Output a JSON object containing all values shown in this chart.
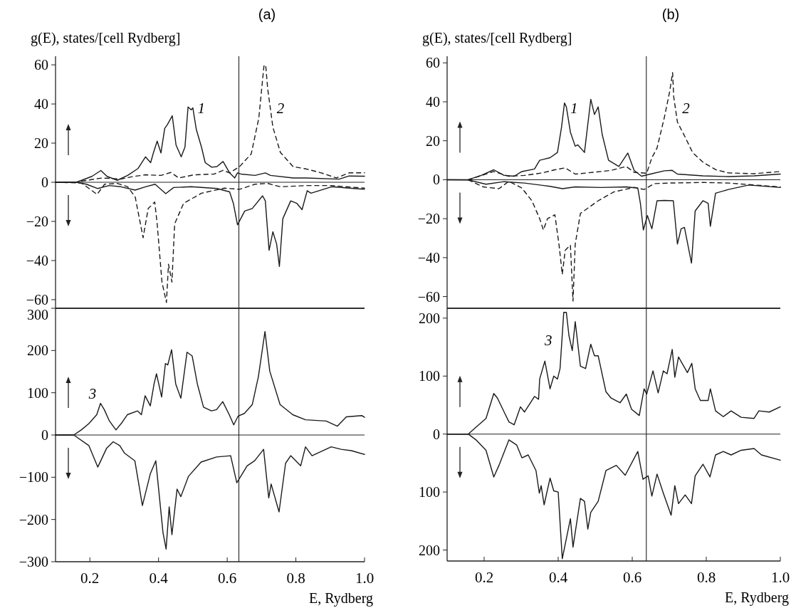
{
  "chart_data": [
    {
      "type": "line",
      "title": "(a)",
      "ylabel": "g(E), states/[cell Rydberg]",
      "xlim": [
        0.1,
        1.0
      ],
      "ylim": [
        -64.4,
        64.4
      ],
      "yticks": [
        60,
        40,
        20,
        0,
        -20,
        -40,
        -60
      ],
      "tick_labels": "y",
      "ref_lines": [
        {
          "axis": "x",
          "value": 0.634
        },
        {
          "axis": "y",
          "value": 0
        }
      ],
      "annotations": [
        "1",
        "2"
      ],
      "series": [
        {
          "color": "#1a1a1a",
          "line_style": "solid",
          "x": [
            0.1,
            0.16,
            0.176,
            0.206,
            0.232,
            0.25,
            0.28,
            0.31,
            0.34,
            0.362,
            0.377,
            0.385,
            0.396,
            0.407,
            0.418,
            0.426,
            0.44,
            0.451,
            0.466,
            0.477,
            0.486,
            0.495,
            0.5,
            0.51,
            0.525,
            0.536,
            0.555,
            0.57,
            0.588,
            0.607,
            0.622,
            0.63,
            0.64,
            0.681,
            0.711,
            0.726,
            0.792,
            0.83,
            0.926,
            0.955,
            1.0
          ],
          "values": [
            0,
            0,
            1,
            3,
            6,
            3,
            1,
            3.5,
            7,
            13,
            10,
            15,
            21,
            15,
            27.5,
            29.5,
            34,
            19,
            13,
            18,
            38.5,
            37,
            38,
            27,
            18,
            10,
            7.7,
            8,
            10.6,
            4.8,
            2.2,
            4.8,
            4.2,
            3.5,
            4.8,
            3.5,
            2.2,
            2.2,
            1.6,
            3.2,
            3.1
          ]
        },
        {
          "color": "#1a1a1a",
          "line_style": "dashed",
          "x": [
            0.176,
            0.236,
            0.29,
            0.325,
            0.362,
            0.407,
            0.436,
            0.459,
            0.503,
            0.562,
            0.588,
            0.607,
            0.636,
            0.67,
            0.692,
            0.707,
            0.712,
            0.718,
            0.733,
            0.755,
            0.792,
            0.83,
            0.874,
            0.918,
            0.955,
            1.0
          ],
          "values": [
            0.6,
            2.2,
            1.6,
            2.9,
            3.8,
            3.5,
            5,
            2.2,
            3.8,
            4.2,
            6.1,
            4.8,
            8,
            14.5,
            32.7,
            59.4,
            60,
            47.7,
            28.2,
            15.2,
            8,
            6.8,
            4.8,
            2.2,
            4.8,
            4.8
          ]
        },
        {
          "color": "#1a1a1a",
          "line_style": "solid",
          "x": [
            0.1,
            0.16,
            0.19,
            0.223,
            0.256,
            0.29,
            0.332,
            0.362,
            0.39,
            0.421,
            0.444,
            0.495,
            0.57,
            0.607,
            0.618,
            0.63,
            0.651,
            0.673,
            0.703,
            0.711,
            0.722,
            0.733,
            0.744,
            0.752,
            0.762,
            0.785,
            0.803,
            0.818,
            0.833,
            0.844,
            0.904,
            1.0
          ],
          "values": [
            0,
            0,
            -1,
            -3.2,
            -1.7,
            -2.3,
            -4,
            -2.3,
            -1,
            -5.8,
            -2.7,
            -2.3,
            -3.2,
            -4.9,
            -10.8,
            -21.8,
            -14.7,
            -13.4,
            -6.9,
            -9.5,
            -34.8,
            -25.3,
            -31.6,
            -43,
            -18.6,
            -9.5,
            -10.8,
            -14,
            -4.3,
            -5.6,
            -2.3,
            -3.6
          ]
        },
        {
          "color": "#1a1a1a",
          "line_style": "dashed",
          "x": [
            0.1,
            0.176,
            0.221,
            0.243,
            0.28,
            0.31,
            0.332,
            0.355,
            0.37,
            0.389,
            0.396,
            0.41,
            0.423,
            0.429,
            0.439,
            0.447,
            0.473,
            0.525,
            0.592,
            0.636,
            0.681,
            0.718,
            0.755,
            0.83,
            0.904,
            1.0
          ],
          "values": [
            0,
            -0.4,
            -6.2,
            -1,
            -0.6,
            -2.3,
            -7.5,
            -28.3,
            -13.4,
            -10.1,
            -21.2,
            -51,
            -61.4,
            -41.9,
            -51,
            -21.2,
            -10.8,
            -5.6,
            -3,
            -3.6,
            -1,
            -0.6,
            -2.3,
            -1.7,
            -1.7,
            -3
          ]
        }
      ]
    },
    {
      "type": "line",
      "xlabel": "E, Rydberg",
      "xlim": [
        0.1,
        1.0
      ],
      "ylim": [
        -300,
        300
      ],
      "xticks": [
        0.2,
        0.4,
        0.6,
        0.8,
        {
          "value": 1,
          "label": "1.0"
        }
      ],
      "yticks": [
        300,
        200,
        100,
        0,
        -100,
        -200,
        -300
      ],
      "ref_lines": [
        {
          "axis": "x",
          "value": 0.634
        },
        {
          "axis": "y",
          "value": 0
        }
      ],
      "annotations": [
        "3"
      ],
      "series": [
        {
          "color": "#1a1a1a",
          "line_style": "solid",
          "x": [
            0.1,
            0.153,
            0.175,
            0.197,
            0.22,
            0.231,
            0.242,
            0.257,
            0.276,
            0.294,
            0.309,
            0.339,
            0.35,
            0.361,
            0.376,
            0.387,
            0.394,
            0.409,
            0.42,
            0.427,
            0.438,
            0.45,
            0.465,
            0.483,
            0.498,
            0.513,
            0.531,
            0.554,
            0.569,
            0.587,
            0.606,
            0.619,
            0.632,
            0.65,
            0.673,
            0.691,
            0.71,
            0.724,
            0.754,
            0.791,
            0.828,
            0.888,
            0.921,
            0.947,
            0.992,
            1.0
          ],
          "values": [
            0,
            0,
            12,
            27,
            48,
            75,
            60,
            33,
            12,
            30,
            48,
            57,
            48,
            93,
            69,
            121,
            145,
            90,
            169,
            166,
            202,
            121,
            87,
            196,
            187,
            121,
            66,
            57,
            60,
            79,
            48,
            24,
            45,
            51,
            72,
            139,
            245,
            151,
            72,
            48,
            36,
            33,
            21,
            43,
            46,
            42
          ]
        },
        {
          "color": "#1a1a1a",
          "line_style": "solid",
          "x": [
            0.1,
            0.153,
            0.197,
            0.223,
            0.249,
            0.268,
            0.287,
            0.301,
            0.331,
            0.353,
            0.376,
            0.392,
            0.413,
            0.422,
            0.431,
            0.439,
            0.454,
            0.465,
            0.487,
            0.524,
            0.569,
            0.61,
            0.628,
            0.658,
            0.68,
            0.706,
            0.721,
            0.728,
            0.751,
            0.77,
            0.785,
            0.814,
            0.828,
            0.847,
            0.903,
            0.932,
            0.962,
            1.0
          ],
          "values": [
            0,
            0,
            -25,
            -76,
            -31,
            -16,
            -25,
            -43,
            -61,
            -167,
            -92,
            -61,
            -231,
            -270,
            -170,
            -236,
            -128,
            -146,
            -98,
            -64,
            -52,
            -49,
            -113,
            -73,
            -61,
            -34,
            -149,
            -116,
            -182,
            -67,
            -49,
            -73,
            -28,
            -49,
            -28,
            -34,
            -37,
            -46
          ]
        }
      ]
    },
    {
      "type": "line",
      "title": "(b)",
      "ylabel": "g(E), states/[cell Rydberg]",
      "xlim": [
        0.1,
        1.0
      ],
      "ylim": [
        -66,
        63.4
      ],
      "yticks": [
        60,
        40,
        20,
        0,
        -20,
        -40,
        -60
      ],
      "tick_labels": "y",
      "ref_lines": [
        {
          "axis": "x",
          "value": 0.638
        },
        {
          "axis": "y",
          "value": 0
        }
      ],
      "annotations": [
        "1",
        "2"
      ],
      "series": [
        {
          "color": "#1a1a1a",
          "line_style": "solid",
          "x": [
            0.1,
            0.157,
            0.192,
            0.226,
            0.254,
            0.281,
            0.302,
            0.336,
            0.35,
            0.378,
            0.398,
            0.409,
            0.417,
            0.422,
            0.433,
            0.446,
            0.453,
            0.471,
            0.488,
            0.498,
            0.508,
            0.519,
            0.536,
            0.564,
            0.588,
            0.605,
            0.625,
            0.653,
            0.687,
            0.708,
            0.722,
            0.791,
            0.86,
            0.929,
            1.0
          ],
          "values": [
            0,
            0,
            2.2,
            5.1,
            2.2,
            1.8,
            4.2,
            5.5,
            10,
            11.3,
            14,
            27,
            39.4,
            37.4,
            24.4,
            17.2,
            17.9,
            14,
            41.3,
            33.5,
            37.4,
            23.1,
            10,
            6.8,
            13.7,
            4.8,
            1.8,
            3.1,
            4.6,
            4.8,
            2.9,
            2,
            1.6,
            2,
            2.9
          ]
        },
        {
          "color": "#1a1a1a",
          "line_style": "dashed",
          "x": [
            0.157,
            0.226,
            0.267,
            0.309,
            0.357,
            0.391,
            0.419,
            0.446,
            0.495,
            0.543,
            0.584,
            0.605,
            0.639,
            0.653,
            0.667,
            0.687,
            0.701,
            0.709,
            0.712,
            0.722,
            0.743,
            0.763,
            0.791,
            0.825,
            0.86,
            0.929,
            1.0
          ],
          "values": [
            0,
            4.2,
            1.8,
            2.2,
            3.5,
            5.1,
            6.1,
            2.9,
            3.8,
            4.8,
            6.8,
            3.8,
            3.3,
            11.3,
            16.3,
            32.2,
            45.2,
            55,
            42.6,
            29.6,
            21.8,
            14,
            9,
            5.2,
            3.5,
            3.1,
            4.2
          ]
        },
        {
          "color": "#1a1a1a",
          "line_style": "solid",
          "x": [
            0.1,
            0.157,
            0.205,
            0.254,
            0.309,
            0.378,
            0.412,
            0.446,
            0.515,
            0.584,
            0.615,
            0.622,
            0.63,
            0.641,
            0.653,
            0.667,
            0.687,
            0.711,
            0.722,
            0.732,
            0.741,
            0.76,
            0.77,
            0.791,
            0.805,
            0.811,
            0.825,
            0.86,
            0.915,
            1.0
          ],
          "values": [
            0,
            -0.1,
            -2.3,
            -1,
            -1.7,
            -3.4,
            -4.6,
            -3.7,
            -4,
            -3.7,
            -4.3,
            -12.1,
            -25.8,
            -18.4,
            -25.2,
            -10.8,
            -10.6,
            -10.8,
            -33,
            -25.2,
            -24.5,
            -42.8,
            -16,
            -10.8,
            -12.1,
            -23.9,
            -6.9,
            -5,
            -2.7,
            -4
          ]
        },
        {
          "color": "#1a1a1a",
          "line_style": "dashed",
          "x": [
            0.157,
            0.198,
            0.24,
            0.267,
            0.302,
            0.329,
            0.35,
            0.36,
            0.371,
            0.391,
            0.402,
            0.411,
            0.419,
            0.433,
            0.44,
            0.446,
            0.46,
            0.508,
            0.55,
            0.605,
            0.632,
            0.66,
            0.701,
            0.791,
            0.86,
            1.0
          ],
          "values": [
            -0.1,
            -3.7,
            -4.6,
            -0.8,
            -4.3,
            -10.8,
            -20,
            -25.8,
            -20,
            -18,
            -33,
            -48.6,
            -36.2,
            -33.6,
            -62.3,
            -33,
            -17.3,
            -10.8,
            -6.3,
            -3.9,
            -5,
            -2,
            -1.7,
            -1.4,
            -1.7,
            -3.7
          ]
        }
      ]
    },
    {
      "type": "line",
      "xlabel": "E, Rydberg",
      "xlim": [
        0.1,
        1.0
      ],
      "ylim": [
        -219,
        217
      ],
      "xticks": [
        0.2,
        0.4,
        0.6,
        0.8,
        {
          "value": 1,
          "label": "1.0"
        }
      ],
      "yticks": [
        200,
        100,
        0,
        {
          "value": -100,
          "label": "100"
        },
        {
          "value": -200,
          "label": "200"
        }
      ],
      "ref_lines": [
        {
          "axis": "x",
          "value": 0.638
        },
        {
          "axis": "y",
          "value": 0
        }
      ],
      "annotations": [
        "3"
      ],
      "series": [
        {
          "color": "#1a1a1a",
          "line_style": "solid",
          "x": [
            0.1,
            0.157,
            0.178,
            0.205,
            0.226,
            0.236,
            0.254,
            0.267,
            0.281,
            0.298,
            0.309,
            0.336,
            0.347,
            0.35,
            0.364,
            0.378,
            0.388,
            0.398,
            0.405,
            0.415,
            0.422,
            0.429,
            0.438,
            0.446,
            0.46,
            0.474,
            0.488,
            0.498,
            0.508,
            0.529,
            0.543,
            0.567,
            0.584,
            0.598,
            0.619,
            0.632,
            0.639,
            0.656,
            0.67,
            0.684,
            0.694,
            0.708,
            0.715,
            0.725,
            0.749,
            0.761,
            0.77,
            0.784,
            0.805,
            0.811,
            0.825,
            0.846,
            0.867,
            0.894,
            0.929,
            0.942,
            0.97,
            1.0
          ],
          "values": [
            0,
            0,
            12,
            27,
            70,
            62,
            38,
            21,
            16,
            47,
            38,
            65,
            60,
            95,
            126,
            78,
            100,
            95,
            113,
            210,
            210,
            170,
            144,
            194,
            117,
            113,
            155,
            135,
            135,
            73,
            62,
            54,
            69,
            43,
            32,
            78,
            69,
            109,
            71,
            109,
            104,
            146,
            98,
            133,
            106,
            122,
            78,
            58,
            58,
            78,
            40,
            30,
            40,
            29,
            27,
            40,
            38,
            47
          ]
        },
        {
          "color": "#1a1a1a",
          "line_style": "solid",
          "x": [
            0.1,
            0.157,
            0.178,
            0.205,
            0.226,
            0.24,
            0.267,
            0.288,
            0.302,
            0.319,
            0.34,
            0.349,
            0.354,
            0.362,
            0.378,
            0.388,
            0.4,
            0.411,
            0.433,
            0.44,
            0.46,
            0.471,
            0.48,
            0.488,
            0.508,
            0.529,
            0.557,
            0.581,
            0.615,
            0.629,
            0.643,
            0.653,
            0.667,
            0.684,
            0.705,
            0.715,
            0.725,
            0.743,
            0.76,
            0.77,
            0.791,
            0.81,
            0.825,
            0.846,
            0.867,
            0.894,
            0.929,
            0.949,
            1.0
          ],
          "values": [
            0,
            0,
            -10,
            -28,
            -74,
            -54,
            -10,
            -19,
            -41,
            -36,
            -63,
            -102,
            -89,
            -122,
            -76,
            -98,
            -100,
            -215,
            -146,
            -195,
            -111,
            -116,
            -164,
            -135,
            -116,
            -63,
            -54,
            -71,
            -30,
            -78,
            -72,
            -107,
            -69,
            -102,
            -140,
            -89,
            -120,
            -105,
            -120,
            -72,
            -52,
            -74,
            -36,
            -30,
            -36,
            -28,
            -25,
            -36,
            -45
          ]
        }
      ]
    }
  ]
}
